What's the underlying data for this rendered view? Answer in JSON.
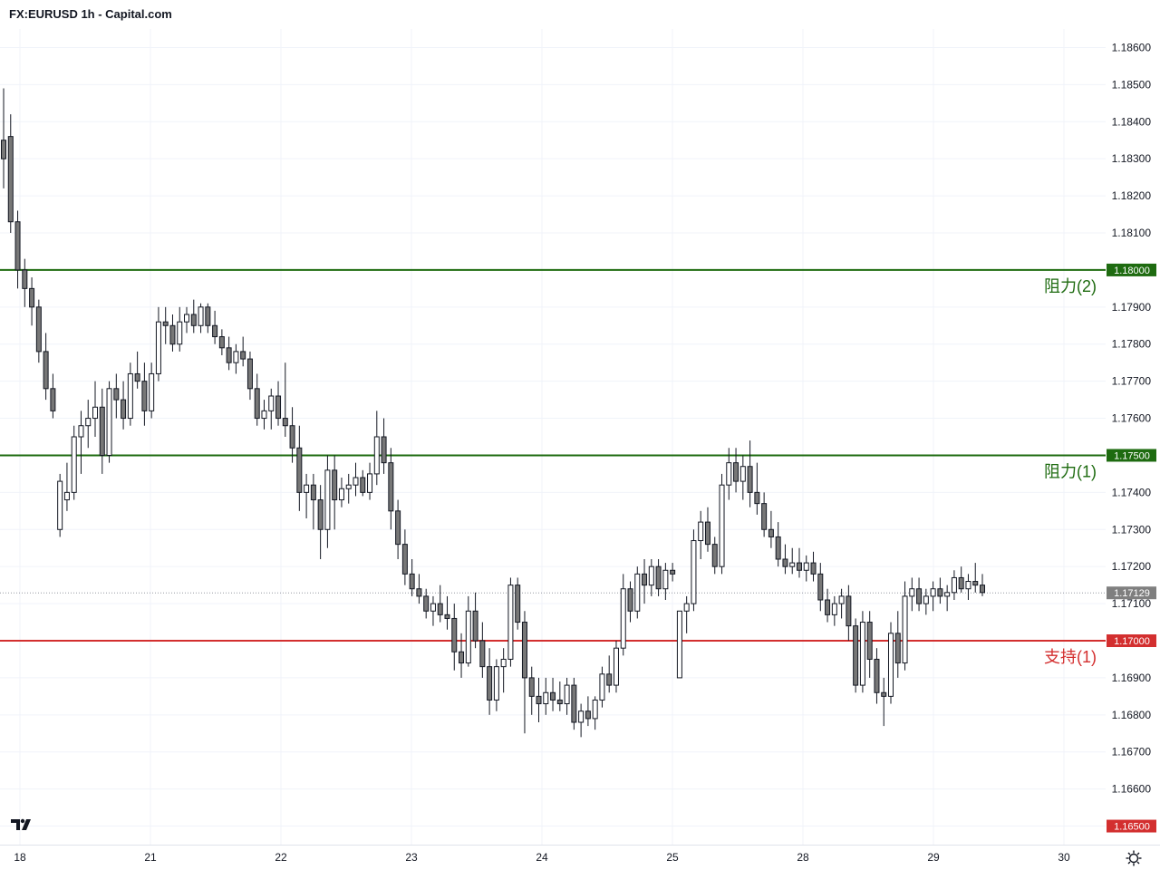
{
  "header": {
    "title": "FX:EURUSD 1h - Capital.com"
  },
  "chart_data": {
    "type": "candlestick",
    "symbol": "FX:EURUSD",
    "interval": "1h",
    "ylim": [
      1.1645,
      1.1865
    ],
    "y_ticks": [
      "1.18600",
      "1.18500",
      "1.18400",
      "1.18300",
      "1.18200",
      "1.18100",
      "1.18000",
      "1.17900",
      "1.17800",
      "1.17700",
      "1.17600",
      "1.17500",
      "1.17400",
      "1.17300",
      "1.17200",
      "1.17100",
      "1.17000",
      "1.16900",
      "1.16800",
      "1.16700",
      "1.16600",
      "1.16500"
    ],
    "x_ticks": [
      {
        "label": "18",
        "pos": 0
      },
      {
        "label": "21",
        "pos": 1
      },
      {
        "label": "22",
        "pos": 2
      },
      {
        "label": "23",
        "pos": 3
      },
      {
        "label": "24",
        "pos": 4
      },
      {
        "label": "25",
        "pos": 5
      },
      {
        "label": "28",
        "pos": 6
      },
      {
        "label": "29",
        "pos": 7
      },
      {
        "label": "30",
        "pos": 8
      }
    ],
    "grid": true,
    "levels": [
      {
        "name": "阻力(2)",
        "price": 1.18,
        "tag": "1.18000",
        "color": "#1e6b10"
      },
      {
        "name": "阻力(1)",
        "price": 1.175,
        "tag": "1.17500",
        "color": "#1e6b10"
      },
      {
        "name": "支持(1)",
        "price": 1.17,
        "tag": "1.17000",
        "color": "#d32f2f"
      }
    ],
    "current_price": {
      "price": 1.17129,
      "tag": "1.17129",
      "color": "#7f7f7f"
    },
    "bottom_tag": {
      "price": 1.165,
      "tag": "1.16500",
      "color": "#d32f2f"
    },
    "candles": [
      [
        1.1835,
        1.1849,
        1.1822,
        1.183
      ],
      [
        1.1836,
        1.1842,
        1.181,
        1.1813
      ],
      [
        1.1813,
        1.1816,
        1.1795,
        1.18
      ],
      [
        1.18,
        1.1803,
        1.179,
        1.1795
      ],
      [
        1.1795,
        1.1798,
        1.1785,
        1.179
      ],
      [
        1.179,
        1.1792,
        1.1775,
        1.1778
      ],
      [
        1.1778,
        1.1783,
        1.1765,
        1.1768
      ],
      [
        1.1768,
        1.1772,
        1.176,
        1.1762
      ],
      [
        1.173,
        1.1745,
        1.1728,
        1.1743
      ],
      [
        1.1738,
        1.1748,
        1.1735,
        1.174
      ],
      [
        1.174,
        1.1758,
        1.1738,
        1.1755
      ],
      [
        1.1755,
        1.1762,
        1.1745,
        1.1758
      ],
      [
        1.1758,
        1.1765,
        1.1752,
        1.176
      ],
      [
        1.176,
        1.177,
        1.1755,
        1.1763
      ],
      [
        1.1763,
        1.1768,
        1.1745,
        1.175
      ],
      [
        1.175,
        1.177,
        1.1748,
        1.1768
      ],
      [
        1.1768,
        1.1772,
        1.176,
        1.1765
      ],
      [
        1.1765,
        1.177,
        1.1757,
        1.176
      ],
      [
        1.176,
        1.1775,
        1.1758,
        1.1772
      ],
      [
        1.1772,
        1.1778,
        1.1768,
        1.177
      ],
      [
        1.177,
        1.1775,
        1.1758,
        1.1762
      ],
      [
        1.1762,
        1.1775,
        1.176,
        1.1772
      ],
      [
        1.1772,
        1.179,
        1.177,
        1.1786
      ],
      [
        1.1786,
        1.179,
        1.178,
        1.1785
      ],
      [
        1.1785,
        1.1788,
        1.1778,
        1.178
      ],
      [
        1.178,
        1.179,
        1.1778,
        1.1786
      ],
      [
        1.1786,
        1.179,
        1.1783,
        1.1788
      ],
      [
        1.1788,
        1.1792,
        1.1783,
        1.1785
      ],
      [
        1.1785,
        1.1791,
        1.1783,
        1.179
      ],
      [
        1.179,
        1.1791,
        1.1783,
        1.1785
      ],
      [
        1.1785,
        1.1789,
        1.178,
        1.1782
      ],
      [
        1.1782,
        1.1784,
        1.1777,
        1.1779
      ],
      [
        1.1779,
        1.1782,
        1.1773,
        1.1775
      ],
      [
        1.1775,
        1.178,
        1.1772,
        1.1778
      ],
      [
        1.1778,
        1.1782,
        1.1774,
        1.1776
      ],
      [
        1.1776,
        1.1778,
        1.1765,
        1.1768
      ],
      [
        1.1768,
        1.1772,
        1.1758,
        1.176
      ],
      [
        1.176,
        1.1765,
        1.1757,
        1.1762
      ],
      [
        1.1762,
        1.1768,
        1.1757,
        1.1766
      ],
      [
        1.1766,
        1.177,
        1.1758,
        1.176
      ],
      [
        1.176,
        1.1775,
        1.1755,
        1.1758
      ],
      [
        1.1758,
        1.1763,
        1.1748,
        1.1752
      ],
      [
        1.1752,
        1.1758,
        1.1735,
        1.174
      ],
      [
        1.174,
        1.1745,
        1.1733,
        1.1742
      ],
      [
        1.1742,
        1.1745,
        1.173,
        1.1738
      ],
      [
        1.1738,
        1.1742,
        1.1722,
        1.173
      ],
      [
        1.173,
        1.175,
        1.1725,
        1.1746
      ],
      [
        1.1746,
        1.175,
        1.173,
        1.1738
      ],
      [
        1.1738,
        1.1744,
        1.1736,
        1.1741
      ],
      [
        1.1741,
        1.1745,
        1.1737,
        1.1742
      ],
      [
        1.1742,
        1.1748,
        1.1739,
        1.1744
      ],
      [
        1.1744,
        1.1746,
        1.1739,
        1.174
      ],
      [
        1.174,
        1.1748,
        1.1738,
        1.1745
      ],
      [
        1.1745,
        1.1762,
        1.1742,
        1.1755
      ],
      [
        1.1755,
        1.176,
        1.1745,
        1.1748
      ],
      [
        1.1748,
        1.1752,
        1.173,
        1.1735
      ],
      [
        1.1735,
        1.1738,
        1.1722,
        1.1726
      ],
      [
        1.1726,
        1.173,
        1.1715,
        1.1718
      ],
      [
        1.1718,
        1.1722,
        1.1712,
        1.1714
      ],
      [
        1.1714,
        1.1718,
        1.171,
        1.1712
      ],
      [
        1.1712,
        1.1714,
        1.1706,
        1.1708
      ],
      [
        1.1708,
        1.1712,
        1.1704,
        1.171
      ],
      [
        1.171,
        1.1715,
        1.1705,
        1.1707
      ],
      [
        1.1707,
        1.1712,
        1.1703,
        1.1706
      ],
      [
        1.1706,
        1.171,
        1.1692,
        1.1697
      ],
      [
        1.1697,
        1.1702,
        1.169,
        1.1694
      ],
      [
        1.1694,
        1.1712,
        1.1693,
        1.1708
      ],
      [
        1.1708,
        1.1713,
        1.1698,
        1.17
      ],
      [
        1.17,
        1.1705,
        1.169,
        1.1693
      ],
      [
        1.1693,
        1.1698,
        1.168,
        1.1684
      ],
      [
        1.1684,
        1.1695,
        1.1681,
        1.1693
      ],
      [
        1.1693,
        1.1698,
        1.1686,
        1.1695
      ],
      [
        1.1695,
        1.1717,
        1.1693,
        1.1715
      ],
      [
        1.1715,
        1.1717,
        1.1703,
        1.1705
      ],
      [
        1.1705,
        1.1708,
        1.1675,
        1.169
      ],
      [
        1.169,
        1.1693,
        1.168,
        1.1685
      ],
      [
        1.1685,
        1.169,
        1.1678,
        1.1683
      ],
      [
        1.1683,
        1.169,
        1.168,
        1.1686
      ],
      [
        1.1686,
        1.169,
        1.1681,
        1.1684
      ],
      [
        1.1684,
        1.1689,
        1.1681,
        1.1683
      ],
      [
        1.1683,
        1.169,
        1.168,
        1.1688
      ],
      [
        1.1688,
        1.169,
        1.1676,
        1.1678
      ],
      [
        1.1678,
        1.1683,
        1.1674,
        1.1681
      ],
      [
        1.1681,
        1.1685,
        1.1677,
        1.1679
      ],
      [
        1.1679,
        1.1685,
        1.1676,
        1.1684
      ],
      [
        1.1684,
        1.1693,
        1.1682,
        1.1691
      ],
      [
        1.1691,
        1.1696,
        1.1686,
        1.1688
      ],
      [
        1.1688,
        1.17,
        1.1686,
        1.1698
      ],
      [
        1.1698,
        1.1718,
        1.1696,
        1.1714
      ],
      [
        1.1714,
        1.1716,
        1.1705,
        1.1708
      ],
      [
        1.1708,
        1.172,
        1.1706,
        1.1718
      ],
      [
        1.1718,
        1.1722,
        1.171,
        1.1715
      ],
      [
        1.1715,
        1.1722,
        1.1712,
        1.172
      ],
      [
        1.172,
        1.1722,
        1.1712,
        1.1714
      ],
      [
        1.1714,
        1.1721,
        1.1711,
        1.1719
      ],
      [
        1.1719,
        1.1721,
        1.1716,
        1.1718
      ],
      [
        1.169,
        1.1708,
        1.169,
        1.1708
      ],
      [
        1.1708,
        1.1712,
        1.1702,
        1.171
      ],
      [
        1.171,
        1.173,
        1.1708,
        1.1727
      ],
      [
        1.1727,
        1.1735,
        1.1722,
        1.1732
      ],
      [
        1.1732,
        1.1736,
        1.1724,
        1.1726
      ],
      [
        1.1726,
        1.1728,
        1.1718,
        1.172
      ],
      [
        1.172,
        1.1745,
        1.1718,
        1.1742
      ],
      [
        1.1742,
        1.1752,
        1.1738,
        1.1748
      ],
      [
        1.1748,
        1.1752,
        1.174,
        1.1743
      ],
      [
        1.1743,
        1.175,
        1.1738,
        1.1747
      ],
      [
        1.1747,
        1.1754,
        1.1736,
        1.174
      ],
      [
        1.174,
        1.1748,
        1.1734,
        1.1737
      ],
      [
        1.1737,
        1.174,
        1.1728,
        1.173
      ],
      [
        1.173,
        1.1735,
        1.1725,
        1.1728
      ],
      [
        1.1728,
        1.1732,
        1.172,
        1.1722
      ],
      [
        1.1722,
        1.1726,
        1.1718,
        1.172
      ],
      [
        1.172,
        1.1725,
        1.1718,
        1.1721
      ],
      [
        1.1721,
        1.1725,
        1.1717,
        1.1719
      ],
      [
        1.1719,
        1.1723,
        1.1716,
        1.1721
      ],
      [
        1.1721,
        1.1724,
        1.1716,
        1.1718
      ],
      [
        1.1718,
        1.1721,
        1.1708,
        1.1711
      ],
      [
        1.1711,
        1.1714,
        1.1705,
        1.1707
      ],
      [
        1.1707,
        1.1712,
        1.1704,
        1.171
      ],
      [
        1.171,
        1.1714,
        1.1706,
        1.1712
      ],
      [
        1.1712,
        1.1715,
        1.17,
        1.1704
      ],
      [
        1.1704,
        1.1706,
        1.1686,
        1.1688
      ],
      [
        1.1688,
        1.1708,
        1.1686,
        1.1705
      ],
      [
        1.1705,
        1.1708,
        1.169,
        1.1695
      ],
      [
        1.1695,
        1.1698,
        1.1683,
        1.1686
      ],
      [
        1.1686,
        1.169,
        1.1677,
        1.1685
      ],
      [
        1.1685,
        1.1705,
        1.1683,
        1.1702
      ],
      [
        1.1702,
        1.1708,
        1.169,
        1.1694
      ],
      [
        1.1694,
        1.1716,
        1.1692,
        1.1712
      ],
      [
        1.1712,
        1.1717,
        1.1708,
        1.1714
      ],
      [
        1.1714,
        1.1717,
        1.1708,
        1.171
      ],
      [
        1.171,
        1.1714,
        1.1707,
        1.1712
      ],
      [
        1.1712,
        1.1716,
        1.1708,
        1.1714
      ],
      [
        1.1714,
        1.1717,
        1.171,
        1.1712
      ],
      [
        1.1712,
        1.1715,
        1.1708,
        1.1713
      ],
      [
        1.1713,
        1.1719,
        1.1711,
        1.1717
      ],
      [
        1.1717,
        1.172,
        1.1713,
        1.1714
      ],
      [
        1.1714,
        1.1718,
        1.1711,
        1.1716
      ],
      [
        1.1716,
        1.1721,
        1.1713,
        1.1715
      ],
      [
        1.1715,
        1.1718,
        1.1712,
        1.1713
      ]
    ]
  },
  "icons": {
    "logo": "tradingview-logo",
    "settings": "settings-gear-icon"
  }
}
